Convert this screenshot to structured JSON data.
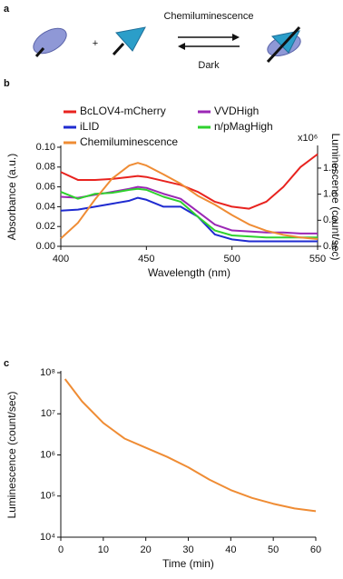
{
  "diagram": {
    "label": "a",
    "plus": "+",
    "forward": "Chemiluminescence",
    "reverse": "Dark"
  },
  "chart_data": [
    {
      "type": "line",
      "panel": "b",
      "xlabel": "Wavelength (nm)",
      "ylabel": "Absorbance (a.u.)",
      "y2label": "Luminescence (count/sec)",
      "y2_multiplier": "x10⁶",
      "x": [
        400,
        410,
        420,
        430,
        440,
        445,
        450,
        460,
        470,
        480,
        490,
        500,
        510,
        520,
        530,
        540,
        550
      ],
      "xlim": [
        400,
        550
      ],
      "xticks": [
        400,
        450,
        500,
        550
      ],
      "ylim": [
        0,
        0.1
      ],
      "yticks": [
        {
          "value": 0,
          "label": "0.00"
        },
        {
          "value": 0.02,
          "label": "0.02"
        },
        {
          "value": 0.04,
          "label": "0.04"
        },
        {
          "value": 0.06,
          "label": "0.06"
        },
        {
          "value": 0.08,
          "label": "0.08"
        },
        {
          "value": 0.1,
          "label": "0.10"
        }
      ],
      "y2lim": [
        0,
        1.9
      ],
      "y2ticks": [
        {
          "value": 0,
          "label": "0.0"
        },
        {
          "value": 0.5,
          "label": "0.5"
        },
        {
          "value": 1,
          "label": "1.0"
        },
        {
          "value": 1.5,
          "label": "1.5"
        }
      ],
      "legend": "top",
      "series": [
        {
          "name": "BcLOV4-mCherry",
          "color": "#e8231f",
          "values": [
            0.075,
            0.067,
            0.067,
            0.068,
            0.07,
            0.071,
            0.07,
            0.066,
            0.062,
            0.055,
            0.045,
            0.04,
            0.038,
            0.045,
            0.06,
            0.08,
            0.093
          ]
        },
        {
          "name": "VVDHigh",
          "color": "#9b27b5",
          "values": [
            0.05,
            0.049,
            0.052,
            0.055,
            0.058,
            0.06,
            0.059,
            0.053,
            0.048,
            0.035,
            0.022,
            0.016,
            0.015,
            0.014,
            0.014,
            0.013,
            0.013
          ]
        },
        {
          "name": "iLID",
          "color": "#1f2bd0",
          "values": [
            0.036,
            0.037,
            0.04,
            0.043,
            0.046,
            0.049,
            0.047,
            0.04,
            0.04,
            0.03,
            0.012,
            0.007,
            0.005,
            0.005,
            0.005,
            0.005,
            0.005
          ]
        },
        {
          "name": "n/pMagHigh",
          "color": "#2ed12e",
          "values": [
            0.055,
            0.048,
            0.053,
            0.054,
            0.057,
            0.058,
            0.057,
            0.05,
            0.045,
            0.03,
            0.016,
            0.011,
            0.01,
            0.009,
            0.009,
            0.009,
            0.009
          ]
        },
        {
          "name": "Chemiluminescence",
          "color": "#ef8c34",
          "axis": "y2",
          "values": [
            0.15,
            0.45,
            0.9,
            1.3,
            1.55,
            1.6,
            1.55,
            1.38,
            1.2,
            0.97,
            0.8,
            0.6,
            0.42,
            0.3,
            0.22,
            0.17,
            0.14
          ]
        }
      ]
    },
    {
      "type": "line",
      "panel": "c",
      "xlabel": "Time (min)",
      "ylabel": "Luminescence (count/sec)",
      "x": [
        1,
        5,
        10,
        15,
        20,
        25,
        30,
        35,
        40,
        45,
        50,
        55,
        60
      ],
      "xlim": [
        0,
        60
      ],
      "xticks": [
        0,
        10,
        20,
        30,
        40,
        50,
        60
      ],
      "ylim": [
        10000,
        100000000
      ],
      "log_y": true,
      "yticks": [
        {
          "value": 10000,
          "label": "10⁴"
        },
        {
          "value": 100000,
          "label": "10⁵"
        },
        {
          "value": 1000000,
          "label": "10⁶"
        },
        {
          "value": 10000000,
          "label": "10⁷"
        },
        {
          "value": 100000000,
          "label": "10⁸"
        }
      ],
      "series": [
        {
          "color": "#ef8c34",
          "values": [
            70000000,
            20000000,
            6000000,
            2500000,
            1500000,
            900000,
            500000,
            250000,
            140000,
            90000,
            65000,
            50000,
            43000
          ]
        }
      ]
    }
  ]
}
